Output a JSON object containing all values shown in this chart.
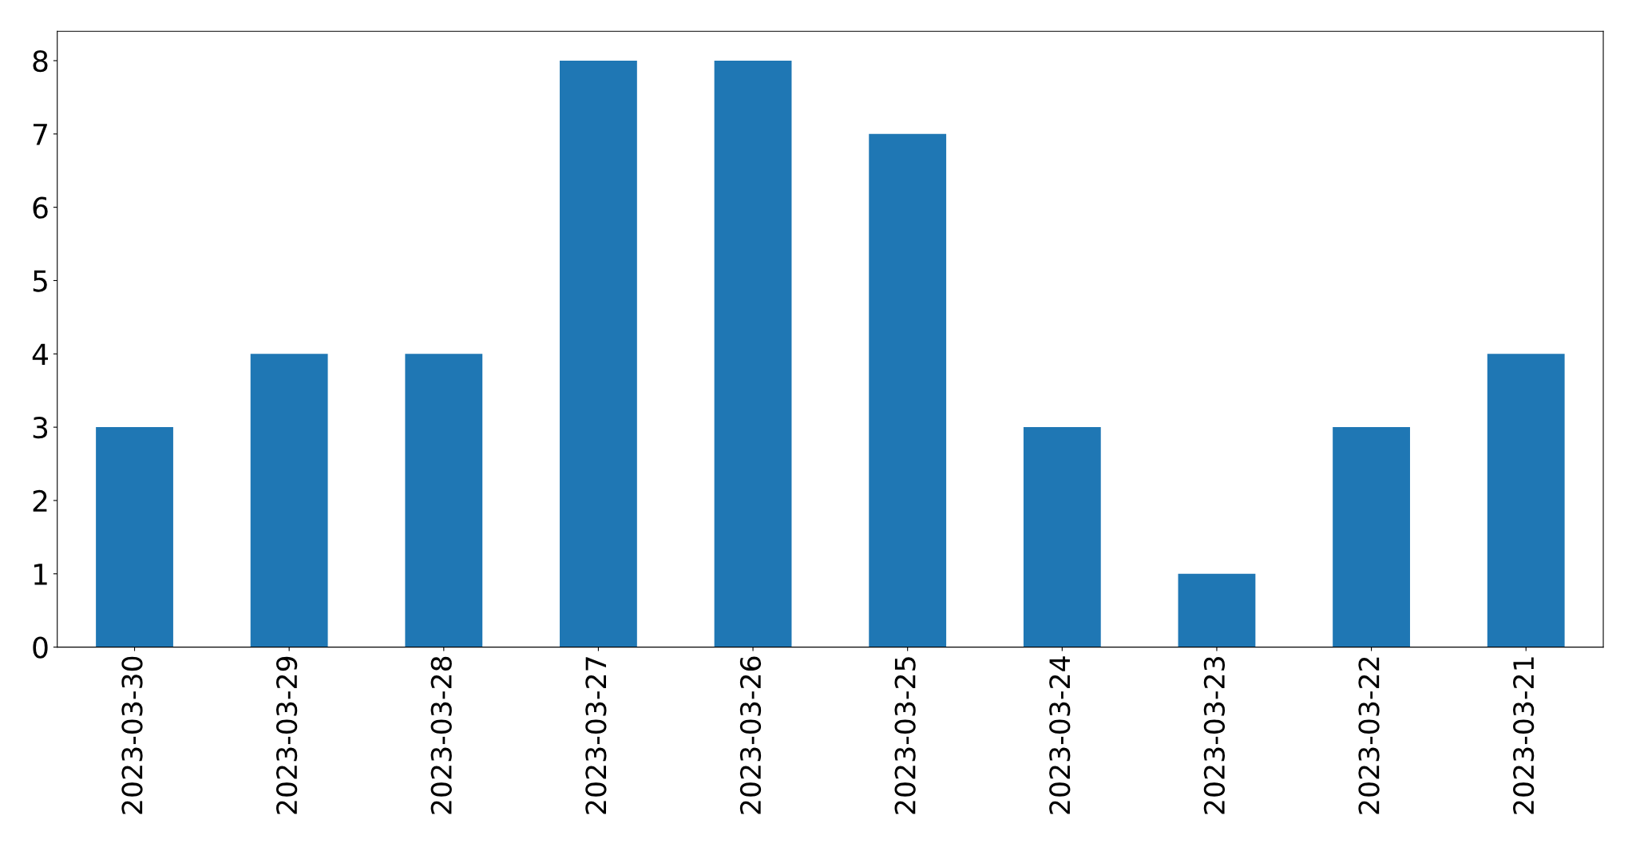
{
  "chart_data": {
    "type": "bar",
    "categories": [
      "2023-03-30",
      "2023-03-29",
      "2023-03-28",
      "2023-03-27",
      "2023-03-26",
      "2023-03-25",
      "2023-03-24",
      "2023-03-23",
      "2023-03-22",
      "2023-03-21"
    ],
    "values": [
      3,
      4,
      4,
      8,
      8,
      7,
      3,
      1,
      3,
      4
    ],
    "color": "#1f77b4",
    "ylim": [
      0,
      8.4
    ],
    "yticks": [
      0,
      1,
      2,
      3,
      4,
      5,
      6,
      7,
      8
    ],
    "grid": false
  }
}
